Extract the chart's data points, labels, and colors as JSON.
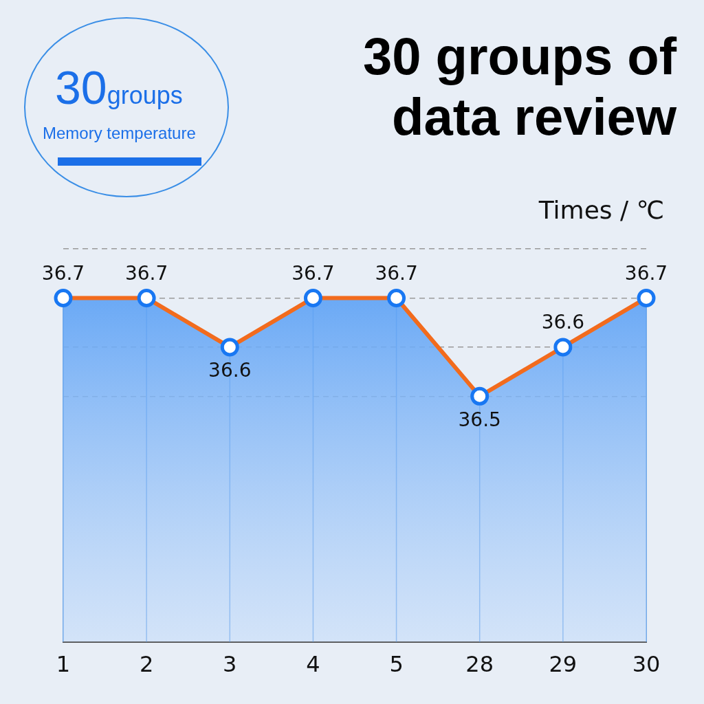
{
  "chart_data": {
    "type": "area",
    "title": "30 groups of data review",
    "ylabel": "Times / ℃",
    "annotations": [
      "30groups",
      "Memory temperature"
    ],
    "categories": [
      "1",
      "2",
      "3",
      "4",
      "5",
      "28",
      "29",
      "30"
    ],
    "series": [
      {
        "color": "#f26b1d",
        "values": [
          36.7,
          36.7,
          36.6,
          36.7,
          36.7,
          36.5,
          36.6,
          36.7
        ]
      }
    ],
    "ylim": [
      36.0,
      36.8
    ],
    "yticks": [
      {
        "value": 36.5,
        "label": null
      },
      {
        "value": 36.6,
        "label": null
      },
      {
        "value": 36.7,
        "label": null
      },
      {
        "value": 36.8,
        "label": null
      }
    ],
    "grid": true,
    "tick_labels": "x",
    "marker": "circle",
    "data_labels": true,
    "legend": false
  }
}
